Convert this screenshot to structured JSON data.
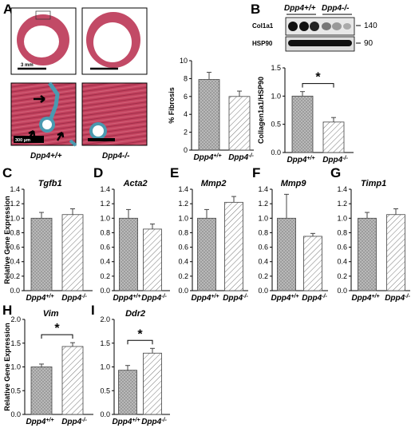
{
  "colors": {
    "wt_fill": "#b8b8b8",
    "ko_fill": "#ffffff",
    "tissue_pink": "#c8506a",
    "tissue_dark": "#a03050",
    "fibrosis_blue": "#4a9ab0"
  },
  "panel_letters": {
    "A": "A",
    "B": "B",
    "C": "C",
    "D": "D",
    "E": "E",
    "F": "F",
    "G": "G",
    "H": "H",
    "I": "I"
  },
  "panelA": {
    "scale_top": "3 mm",
    "scale_bottom": "300 μm",
    "genotype_wt": "Dpp4+/+",
    "genotype_ko": "Dpp4-/-"
  },
  "panelB": {
    "blot_wt": "Dpp4+/+",
    "blot_ko": "Dpp4-/-",
    "row1": "Col1a1",
    "row2": "HSP90",
    "mw1": "140",
    "mw2": "90"
  },
  "categories": [
    "Dpp4+/+",
    "Dpp4-/-"
  ],
  "y_label_gene": "Relative Gene Expression",
  "chart_data": [
    {
      "id": "A_fibrosis",
      "type": "bar",
      "title": "",
      "ylabel": "% Fibrosis",
      "ylim": [
        0,
        10
      ],
      "yticks": [
        "0",
        "2",
        "4",
        "6",
        "8",
        "10"
      ],
      "categories": [
        "Dpp4+/+",
        "Dpp4-/-"
      ],
      "values": [
        7.9,
        6.0
      ],
      "errors": [
        0.8,
        0.6
      ],
      "significance": ""
    },
    {
      "id": "B_collagen",
      "type": "bar",
      "title": "",
      "ylabel": "Collagen1a1/HSP90",
      "ylim": [
        0,
        1.5
      ],
      "yticks": [
        "0.0",
        "0.5",
        "1.0",
        "1.5"
      ],
      "categories": [
        "Dpp4+/+",
        "Dpp4-/-"
      ],
      "values": [
        1.0,
        0.54
      ],
      "errors": [
        0.08,
        0.08
      ],
      "significance": "*"
    },
    {
      "id": "C_Tgfb1",
      "type": "bar",
      "title": "Tgfb1",
      "ylabel": "Relative Gene Expression",
      "ylim": [
        0,
        1.4
      ],
      "yticks": [
        "0.0",
        "0.2",
        "0.4",
        "0.6",
        "0.8",
        "1.0",
        "1.2",
        "1.4"
      ],
      "categories": [
        "Dpp4+/+",
        "Dpp4-/-"
      ],
      "values": [
        1.0,
        1.05
      ],
      "errors": [
        0.08,
        0.08
      ],
      "significance": ""
    },
    {
      "id": "D_Acta2",
      "type": "bar",
      "title": "Acta2",
      "ylabel": "",
      "ylim": [
        0,
        1.4
      ],
      "yticks": [
        "0.0",
        "0.2",
        "0.4",
        "0.6",
        "0.8",
        "1.0",
        "1.2",
        "1.4"
      ],
      "categories": [
        "Dpp4+/+",
        "Dpp4-/-"
      ],
      "values": [
        1.0,
        0.85
      ],
      "errors": [
        0.12,
        0.07
      ],
      "significance": ""
    },
    {
      "id": "E_Mmp2",
      "type": "bar",
      "title": "Mmp2",
      "ylabel": "",
      "ylim": [
        0,
        1.4
      ],
      "yticks": [
        "0.0",
        "0.2",
        "0.4",
        "0.6",
        "0.8",
        "1.0",
        "1.2",
        "1.4"
      ],
      "categories": [
        "Dpp4+/+",
        "Dpp4-/-"
      ],
      "values": [
        1.0,
        1.22
      ],
      "errors": [
        0.12,
        0.08
      ],
      "significance": ""
    },
    {
      "id": "F_Mmp9",
      "type": "bar",
      "title": "Mmp9",
      "ylabel": "",
      "ylim": [
        0,
        1.4
      ],
      "yticks": [
        "0.0",
        "0.2",
        "0.4",
        "0.6",
        "0.8",
        "1.0",
        "1.2",
        "1.4"
      ],
      "categories": [
        "Dpp4+/+",
        "Dpp4-/-"
      ],
      "values": [
        1.0,
        0.75
      ],
      "errors": [
        0.33,
        0.04
      ],
      "significance": ""
    },
    {
      "id": "G_Timp1",
      "type": "bar",
      "title": "Timp1",
      "ylabel": "",
      "ylim": [
        0,
        1.4
      ],
      "yticks": [
        "0.0",
        "0.2",
        "0.4",
        "0.6",
        "0.8",
        "1.0",
        "1.2",
        "1.4"
      ],
      "categories": [
        "Dpp4+/+",
        "Dpp4-/-"
      ],
      "values": [
        1.0,
        1.05
      ],
      "errors": [
        0.08,
        0.08
      ],
      "significance": ""
    },
    {
      "id": "H_Vim",
      "type": "bar",
      "title": "Vim",
      "ylabel": "Relative Gene Expression",
      "ylim": [
        0,
        2.0
      ],
      "yticks": [
        "0.0",
        "0.5",
        "1.0",
        "1.5",
        "2.0"
      ],
      "categories": [
        "Dpp4+/+",
        "Dpp4-/-"
      ],
      "values": [
        1.0,
        1.43
      ],
      "errors": [
        0.06,
        0.08
      ],
      "significance": "*"
    },
    {
      "id": "I_Ddr2",
      "type": "bar",
      "title": "Ddr2",
      "ylabel": "",
      "ylim": [
        0,
        2.0
      ],
      "yticks": [
        "0.0",
        "0.5",
        "1.0",
        "1.5",
        "2.0"
      ],
      "categories": [
        "Dpp4+/+",
        "Dpp4-/-"
      ],
      "values": [
        0.93,
        1.29
      ],
      "errors": [
        0.1,
        0.1
      ],
      "significance": "*"
    }
  ]
}
